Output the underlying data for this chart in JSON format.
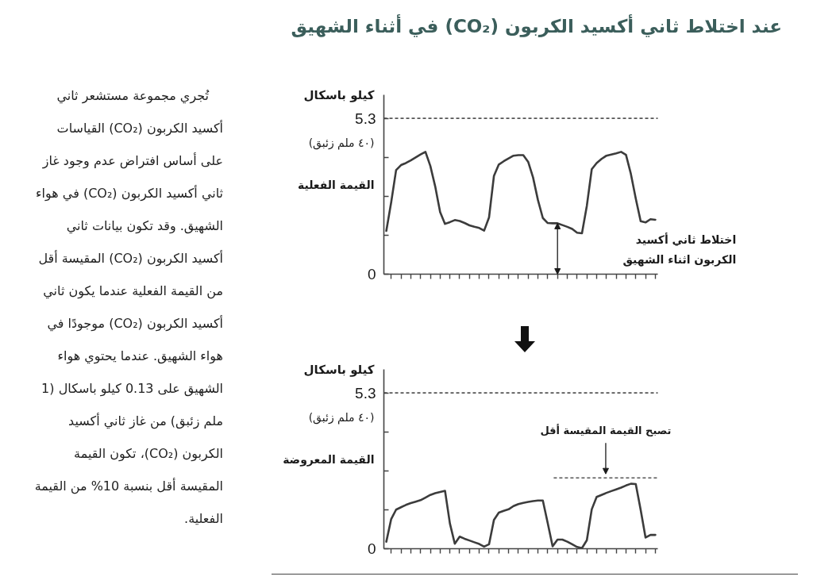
{
  "chart_data": [
    {
      "type": "line",
      "title": "عند اختلاط ثاني أكسيد الكربون (CO₂) في أثناء الشهيق",
      "ylabel": "كيلو باسكال",
      "categories": [
        null,
        null,
        null,
        null,
        null,
        null,
        null,
        null,
        null,
        null,
        null,
        null,
        null,
        null,
        null,
        null,
        null,
        null,
        null,
        null,
        null,
        null,
        null,
        null,
        null,
        null,
        null,
        null,
        null,
        null,
        null,
        null,
        null,
        null,
        null,
        null,
        null,
        null,
        null,
        null,
        null,
        null,
        null,
        null,
        null,
        null,
        null,
        null,
        null,
        null,
        null,
        null,
        null,
        null,
        null,
        null
      ],
      "values": [
        1.47,
        2.45,
        3.54,
        3.71,
        3.78,
        3.87,
        3.97,
        4.07,
        4.16,
        3.68,
        2.98,
        2.11,
        1.71,
        1.77,
        1.84,
        1.81,
        1.74,
        1.66,
        1.61,
        1.57,
        1.48,
        1.93,
        3.34,
        3.73,
        3.84,
        3.94,
        4.03,
        4.05,
        4.05,
        3.82,
        3.29,
        2.52,
        1.91,
        1.74,
        1.73,
        1.73,
        1.67,
        1.61,
        1.54,
        1.41,
        1.39,
        2.33,
        3.57,
        3.78,
        3.92,
        4.03,
        4.07,
        4.11,
        4.16,
        4.06,
        3.41,
        2.57,
        1.8,
        1.76,
        1.87,
        1.85
      ],
      "color": "#3c3c3c",
      "ylim": [
        0,
        6.1
      ],
      "yticks": [
        0,
        {
          "value": 1.325,
          "label": null
        },
        {
          "value": 2.65,
          "label": null
        },
        {
          "value": 3.975,
          "label": null
        },
        5.3
      ],
      "tick_labels": "y",
      "ref_lines": [
        {
          "axis": "y",
          "value": 5.3,
          "line_style": "dashed",
          "color": "#555555"
        }
      ],
      "annotations": [
        "(٤٠ ملم زئبق)",
        "القيمة الفعلية",
        "اختلاط ثاني أكسيد الكربون اثناء الشهيق"
      ]
    },
    {
      "type": "line",
      "ylabel": "كيلو باسكال",
      "categories": [
        null,
        null,
        null,
        null,
        null,
        null,
        null,
        null,
        null,
        null,
        null,
        null,
        null,
        null,
        null,
        null,
        null,
        null,
        null,
        null,
        null,
        null,
        null,
        null,
        null,
        null,
        null,
        null,
        null,
        null,
        null,
        null,
        null,
        null,
        null,
        null,
        null,
        null,
        null,
        null,
        null,
        null,
        null,
        null,
        null,
        null,
        null,
        null,
        null,
        null,
        null,
        null,
        null,
        null,
        null,
        null
      ],
      "values": [
        0.24,
        1.01,
        1.33,
        1.41,
        1.49,
        1.55,
        1.6,
        1.65,
        1.74,
        1.83,
        1.89,
        1.93,
        1.97,
        0.86,
        0.17,
        0.41,
        0.34,
        0.28,
        0.22,
        0.16,
        0.07,
        0.15,
        0.98,
        1.23,
        1.29,
        1.34,
        1.45,
        1.52,
        1.56,
        1.59,
        1.62,
        1.64,
        1.64,
        0.87,
        0.08,
        0.31,
        0.31,
        0.24,
        0.15,
        0.06,
        0.02,
        0.29,
        1.34,
        1.76,
        1.83,
        1.9,
        1.96,
        2.02,
        2.08,
        2.15,
        2.21,
        2.2,
        1.32,
        0.38,
        0.47,
        0.47
      ],
      "color": "#3c3c3c",
      "ylim": [
        0,
        6.1
      ],
      "yticks": [
        0,
        {
          "value": 1.325,
          "label": null
        },
        {
          "value": 2.65,
          "label": null
        },
        {
          "value": 3.975,
          "label": null
        },
        5.3
      ],
      "tick_labels": "y",
      "ref_lines": [
        {
          "axis": "y",
          "value": 5.3,
          "line_style": "dashed",
          "color": "#555555"
        },
        {
          "axis": "y",
          "value": 2.41,
          "label": "تصبح القيمة المقيسة أقل",
          "line_style": "dashed",
          "color": "#555555"
        }
      ],
      "annotations": [
        "(٤٠ ملم زئبق)",
        "القيمة المعروضة"
      ]
    },
    {
      "type": "other",
      "annotations": [
        "تُجري مجموعة مستشعر ثاني أكسيد الكربون (CO₂) القياسات على أساس افتراض عدم وجود غاز ثاني أكسيد الكربون (CO₂) في هواء الشهيق. وقد تكون بيانات ثاني أكسيد الكربون (CO₂) المقيسة أقل من القيمة الفعلية عندما يكون ثاني أكسيد الكربون (CO₂) موجودًا في هواء الشهيق. عندما يحتوي هواء الشهيق على 0.13 كيلو باسكال (1 ملم زئبق) من غاز ثاني أكسيد الكربون (CO₂)، تكون القيمة المقيسة أقل بنسبة 10% من القيمة الفعلية."
      ]
    }
  ]
}
